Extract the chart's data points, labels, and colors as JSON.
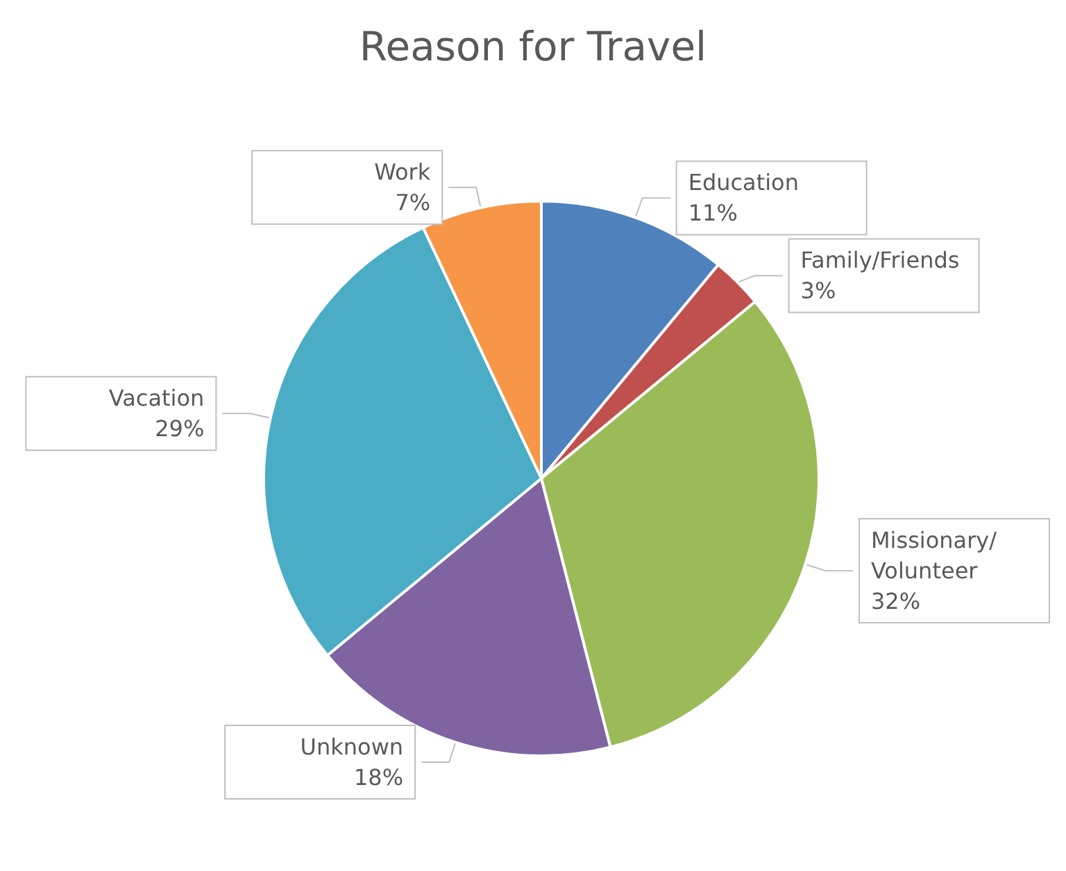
{
  "chart_data": {
    "type": "pie",
    "title": "Reason for Travel",
    "categories": [
      "Education",
      "Family/Friends",
      "Missionary/Volunteer",
      "Unknown",
      "Vacation",
      "Work"
    ],
    "values": [
      11,
      3,
      32,
      18,
      29,
      7
    ],
    "colors": [
      "#4f81bd",
      "#c0504d",
      "#9bbb59",
      "#8064a2",
      "#4bacc6",
      "#f79646"
    ],
    "value_labels": [
      "11%",
      "3%",
      "32%",
      "18%",
      "29%",
      "7%"
    ],
    "legend": false
  }
}
